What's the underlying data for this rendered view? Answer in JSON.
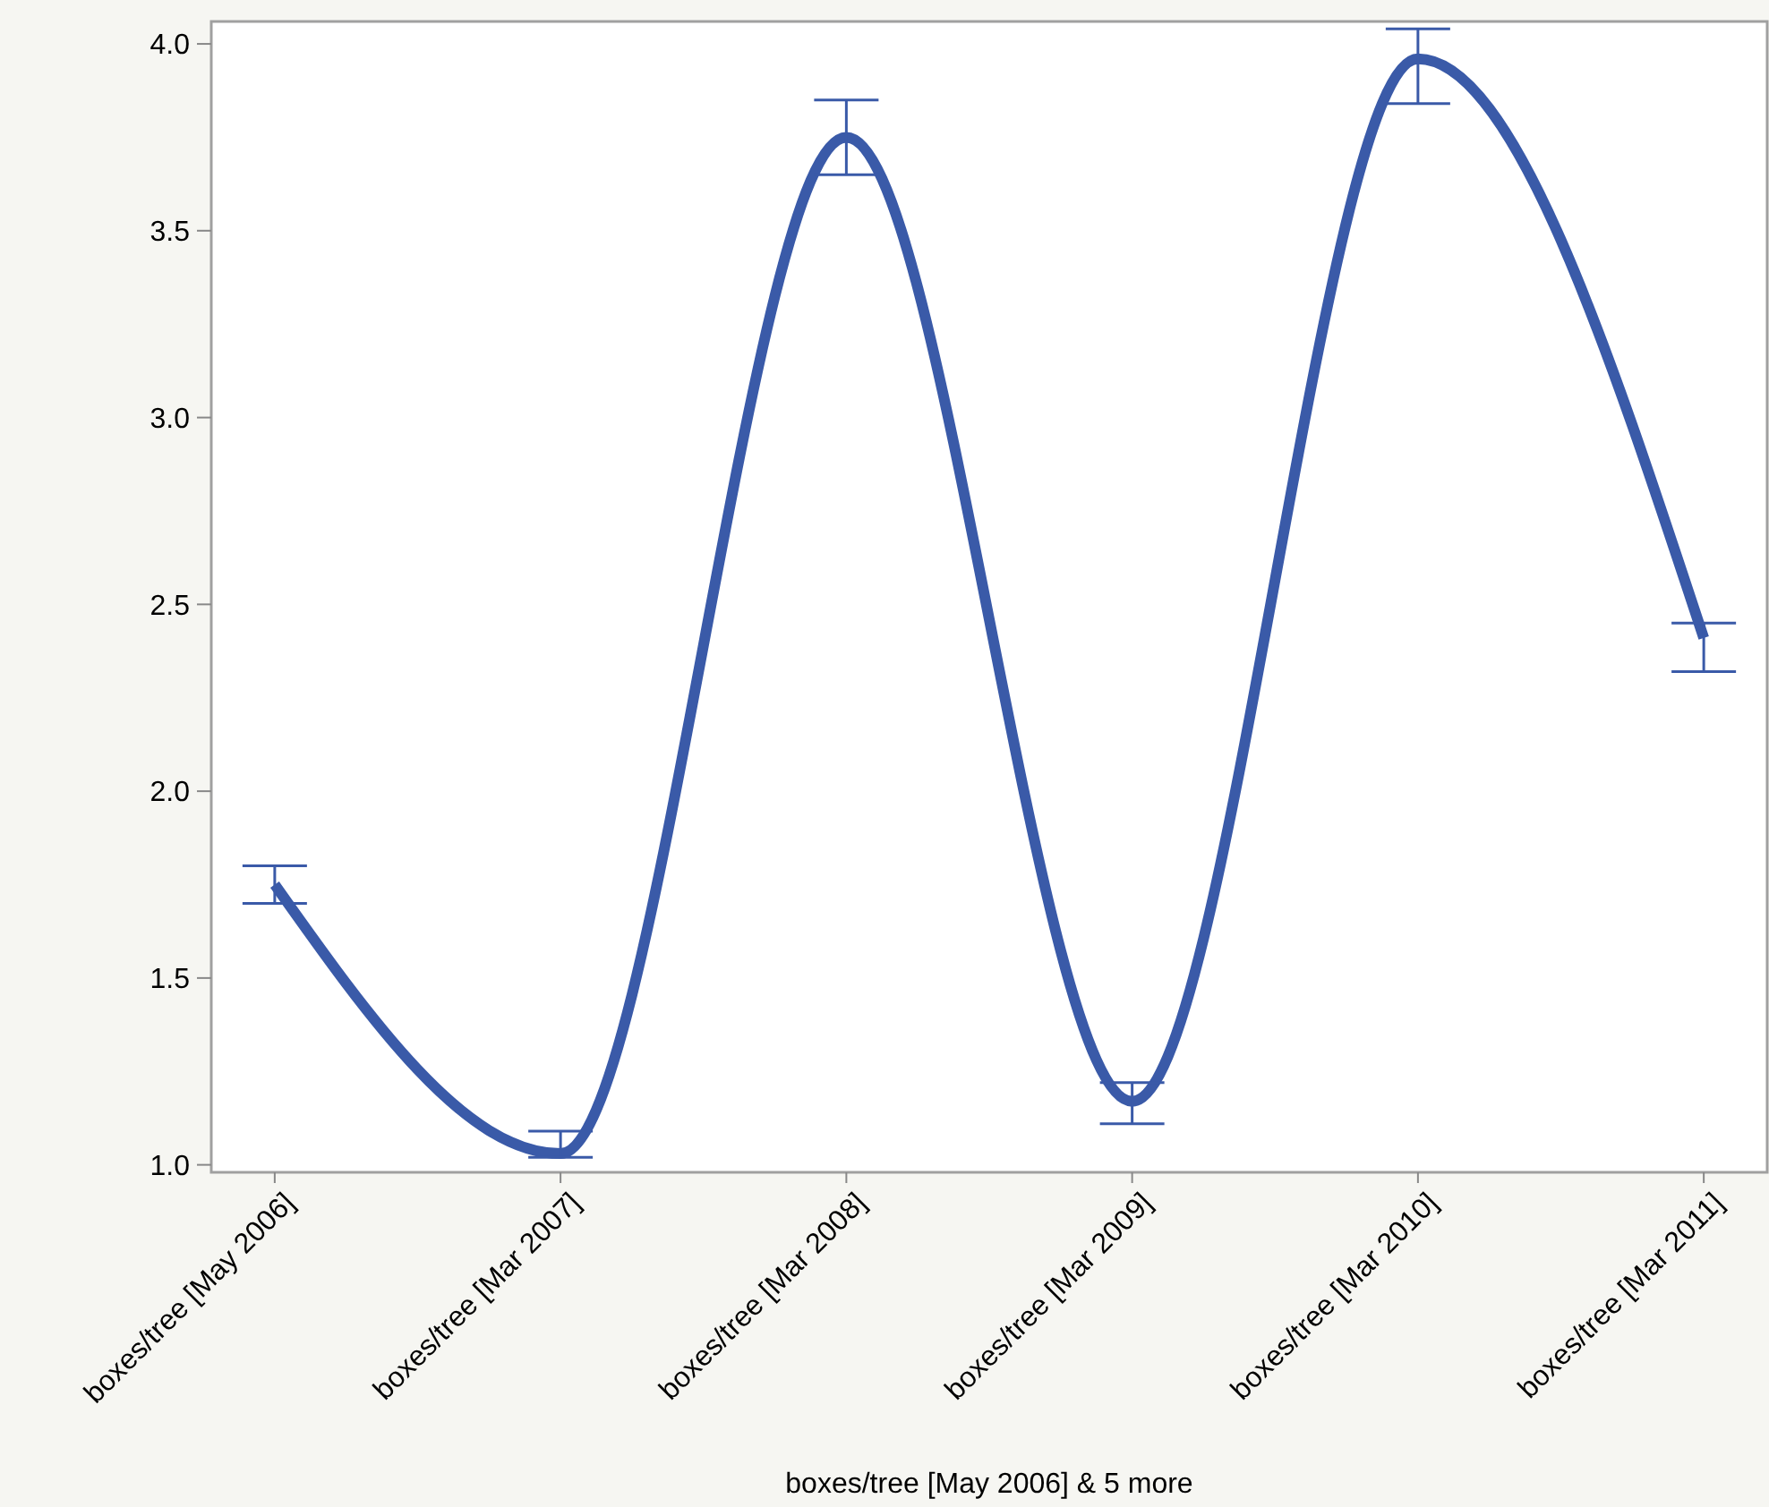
{
  "chart_data": {
    "type": "line",
    "xlabel": "boxes/tree  [May 2006] & 5 more",
    "categories": [
      "boxes/tree  [May 2006]",
      "boxes/tree  [Mar 2007]",
      "boxes/tree  [Mar 2008]",
      "boxes/tree  [Mar 2009]",
      "boxes/tree  [Mar 2010]",
      "boxes/tree  [Mar 2011]"
    ],
    "series": [
      {
        "color": "#3a5aa8",
        "values": [
          1.75,
          1.03,
          3.75,
          1.17,
          3.96,
          2.41
        ],
        "errors": [
          [
            1.7,
            1.8
          ],
          [
            1.02,
            1.09
          ],
          [
            3.65,
            3.85
          ],
          [
            1.11,
            1.22
          ],
          [
            3.84,
            4.04
          ],
          [
            2.32,
            2.45
          ]
        ]
      }
    ],
    "ylim": [
      0.98,
      4.06
    ],
    "yticks": [
      {
        "value": 1,
        "label": "1.0"
      },
      {
        "value": 1.5,
        "label": "1.5"
      },
      {
        "value": 2,
        "label": "2.0"
      },
      {
        "value": 2.5,
        "label": "2.5"
      },
      {
        "value": 3,
        "label": "3.0"
      },
      {
        "value": 3.5,
        "label": "3.5"
      },
      {
        "value": 4,
        "label": "4.0"
      }
    ],
    "marker": "none",
    "line_style": "solid"
  }
}
